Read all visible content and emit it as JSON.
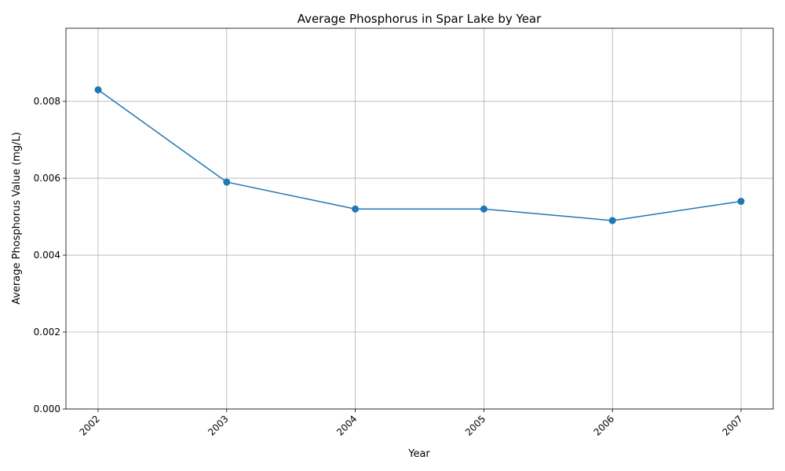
{
  "chart_data": {
    "type": "line",
    "title": "Average Phosphorus in Spar Lake by Year",
    "xlabel": "Year",
    "ylabel": "Average Phosphorus Value (mg/L)",
    "categories": [
      "2002",
      "2003",
      "2004",
      "2005",
      "2006",
      "2007"
    ],
    "series": [
      {
        "values": [
          0.0083,
          0.0059,
          0.0052,
          0.0052,
          0.0049,
          0.0054
        ]
      }
    ],
    "ylim": [
      0,
      0.0099
    ],
    "yticks": [
      "0.000",
      "0.002",
      "0.004",
      "0.006",
      "0.008"
    ],
    "ytick_values": [
      0,
      0.002,
      0.004,
      0.006,
      0.008
    ],
    "grid": true,
    "marker": "circle",
    "color": "#1f77b4"
  }
}
